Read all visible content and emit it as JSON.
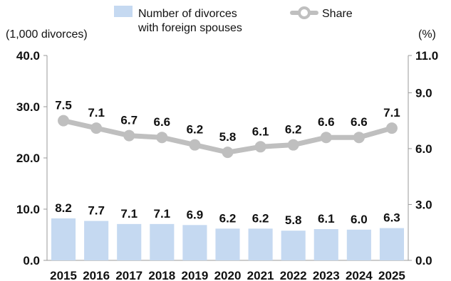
{
  "chart_data": {
    "type": "bar",
    "categories": [
      "2015",
      "2016",
      "2017",
      "2018",
      "2019",
      "2020",
      "2021",
      "2022",
      "2023",
      "2024",
      "2025"
    ],
    "series": [
      {
        "name": "Number of divorces with foreign spouses",
        "kind": "bar",
        "axis": "left",
        "values": [
          8.2,
          7.7,
          7.1,
          7.1,
          6.9,
          6.2,
          6.2,
          5.8,
          6.1,
          6.0,
          6.3
        ],
        "labels": [
          "8.2",
          "7.7",
          "7.1",
          "7.1",
          "6.9",
          "6.2",
          "6.2",
          "5.8",
          "6.1",
          "6.0",
          "6.3"
        ],
        "color": "#c5d9f1"
      },
      {
        "name": "Share",
        "kind": "line",
        "axis": "right",
        "values": [
          7.5,
          7.1,
          6.7,
          6.6,
          6.2,
          5.8,
          6.1,
          6.2,
          6.6,
          6.6,
          7.1
        ],
        "labels": [
          "7.5",
          "7.1",
          "6.7",
          "6.6",
          "6.2",
          "5.8",
          "6.1",
          "6.2",
          "6.6",
          "6.6",
          "7.1"
        ],
        "color": "#bfbfbf"
      }
    ],
    "legend": {
      "bar_line1": "Number of divorces",
      "bar_line2": "with foreign spouses",
      "line": "Share",
      "position": "top"
    },
    "y_left": {
      "unit": "(1,000 divorces)",
      "ylim": [
        0,
        40
      ],
      "ticks": [
        "0.0",
        "10.0",
        "20.0",
        "30.0",
        "40.0"
      ],
      "tick_values": [
        0,
        10,
        20,
        30,
        40
      ]
    },
    "y_right": {
      "unit": "(%)",
      "ylim": [
        0,
        11
      ],
      "ticks": [
        "0.0",
        "3.0",
        "6.0",
        "9.0",
        "11.0"
      ],
      "tick_values": [
        0,
        3,
        6,
        9,
        11
      ]
    },
    "grid": false
  }
}
